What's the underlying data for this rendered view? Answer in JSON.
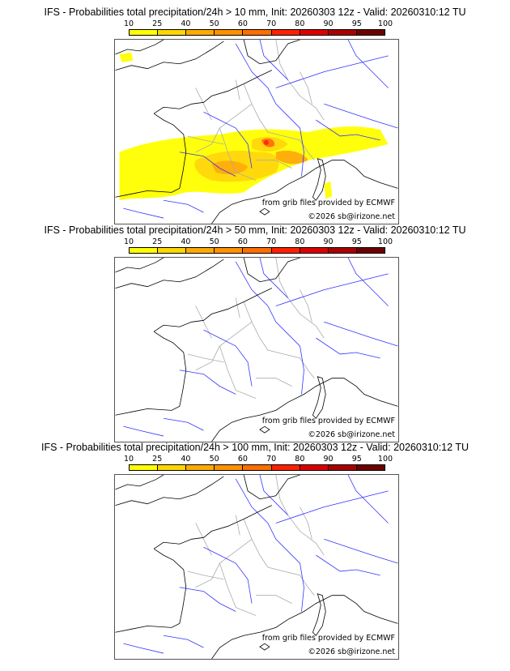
{
  "colorbar": {
    "ticks": [
      "10",
      "25",
      "40",
      "50",
      "60",
      "70",
      "80",
      "90",
      "95",
      "100"
    ],
    "colors": [
      "#ffff00",
      "#ffd700",
      "#ffaa00",
      "#ff9100",
      "#ff6e00",
      "#ff2000",
      "#dc0000",
      "#aa0000",
      "#6e0000"
    ]
  },
  "panels": [
    {
      "title": "IFS - Probabilities total precipitation/24h > 10 mm, Init: 20260303 12z - Valid: 20260310:12 TU",
      "credit_source": "from grib files provided by ECMWF",
      "credit_copy": "©2026 sb@irizone.net",
      "has_precip": true
    },
    {
      "title": "IFS - Probabilities total precipitation/24h > 50 mm, Init: 20260303 12z - Valid: 20260310:12 TU",
      "credit_source": "from grib files provided by ECMWF",
      "credit_copy": "©2026 sb@irizone.net",
      "has_precip": false
    },
    {
      "title": "IFS - Probabilities total precipitation/24h > 100 mm, Init: 20260303 12z - Valid: 20260310:12 TU",
      "credit_source": "from grib files provided by ECMWF",
      "credit_copy": "©2026 sb@irizone.net",
      "has_precip": false
    }
  ]
}
